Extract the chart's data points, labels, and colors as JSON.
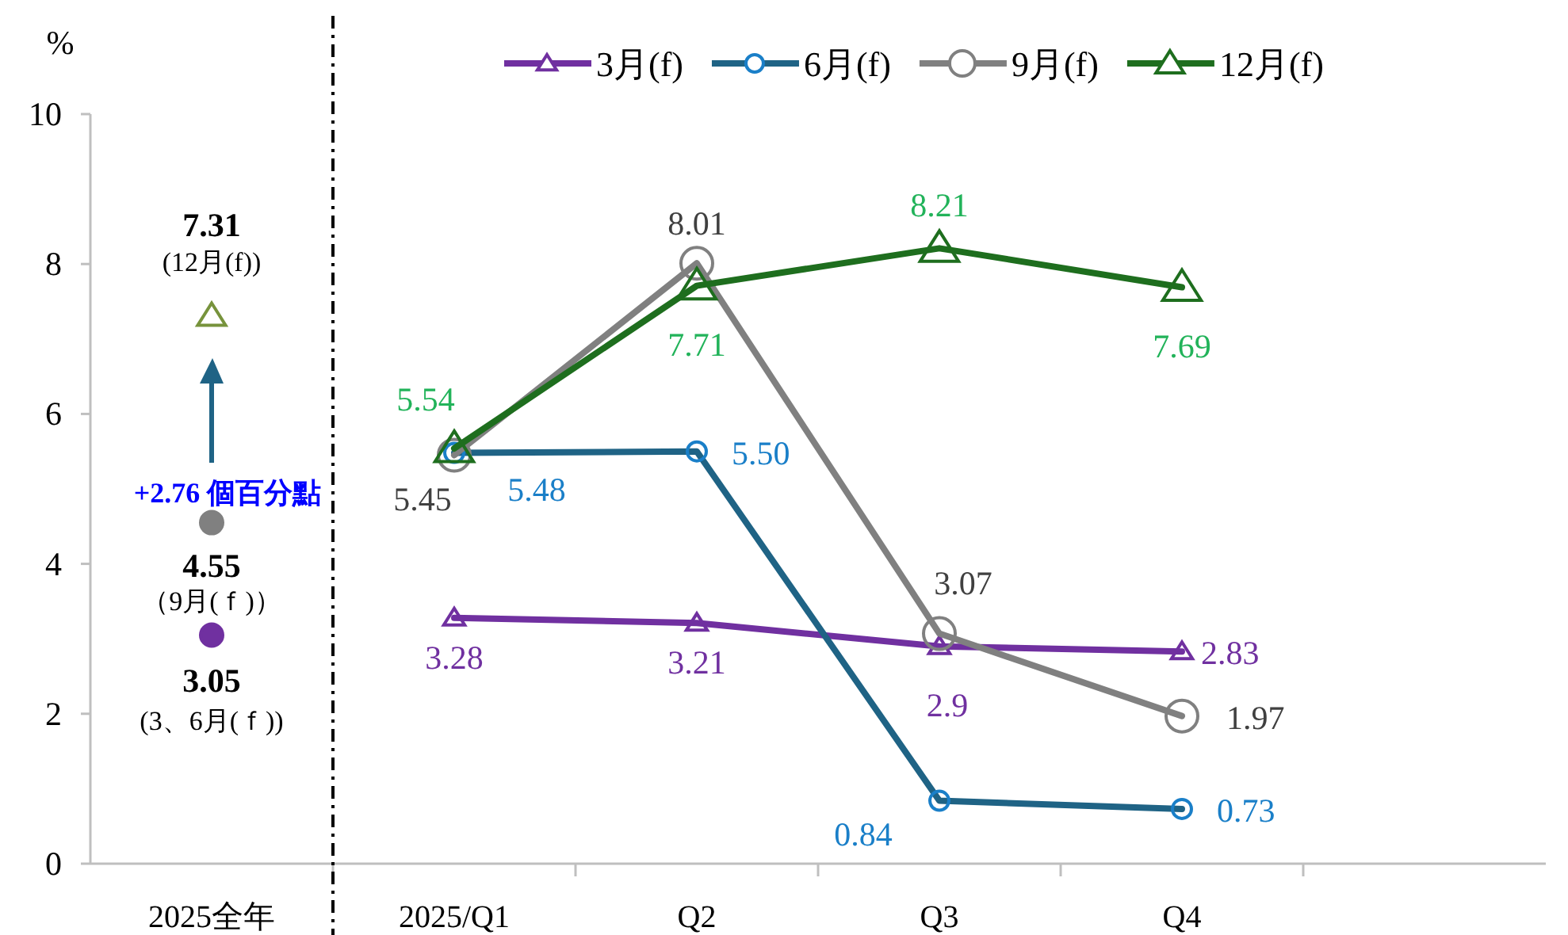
{
  "chart_data": {
    "type": "line",
    "ylabel": "%",
    "categories": [
      "2025全年",
      "2025/Q1",
      "Q2",
      "Q3",
      "Q4",
      null
    ],
    "ylim": [
      0,
      10
    ],
    "yticks": [
      0,
      2,
      4,
      6,
      8,
      10
    ],
    "legend": "top",
    "grid": false,
    "series": [
      {
        "name": "3月(f)",
        "color": "#7030a0",
        "marker": "triangle",
        "values": [
          null,
          3.28,
          3.21,
          2.9,
          2.83,
          null
        ],
        "value_labels": [
          null,
          "3.28",
          "3.21",
          "2.9",
          "2.83",
          null
        ]
      },
      {
        "name": "6月(f)",
        "color": "#1f6385",
        "marker": "circle",
        "values": [
          null,
          5.48,
          5.5,
          0.84,
          0.73,
          null
        ],
        "value_labels": [
          null,
          "5.48",
          "5.50",
          "0.84",
          "0.73",
          null
        ]
      },
      {
        "name": "9月(f)",
        "color": "#808080",
        "marker": "circle",
        "values": [
          null,
          5.45,
          8.01,
          3.07,
          1.97,
          null
        ],
        "value_labels": [
          null,
          "5.45",
          "8.01",
          "3.07",
          "1.97",
          null
        ]
      },
      {
        "name": "12月(f)",
        "color": "#1e6e1e",
        "marker": "triangle",
        "values": [
          null,
          5.54,
          7.71,
          8.21,
          7.69,
          null
        ],
        "value_labels": [
          null,
          "5.54",
          "7.71",
          "8.21",
          "7.69",
          null
        ]
      },
      {
        "type": "scatter",
        "color": "#77933c",
        "marker": "triangle",
        "x": [
          "2025全年"
        ],
        "values": [
          7.31
        ],
        "value_labels": [
          "7.31"
        ]
      },
      {
        "type": "scatter",
        "color": "#808080",
        "marker": "circle",
        "x": [
          "2025全年"
        ],
        "values": [
          4.55
        ],
        "value_labels": [
          "4.55"
        ]
      },
      {
        "type": "scatter",
        "color": "#7030a0",
        "marker": "circle",
        "x": [
          "2025全年"
        ],
        "values": [
          3.05
        ],
        "value_labels": [
          "3.05"
        ]
      }
    ],
    "annotations": [
      {
        "text": "(12月(f))",
        "x": "2025全年",
        "y": 7.31
      },
      {
        "text": "（9月(ｆ)）",
        "x": "2025全年",
        "y": 4.55
      },
      {
        "text": "(3、6月(ｆ))",
        "x": "2025全年",
        "y": 3.05
      },
      "+2.76 個百分點"
    ]
  }
}
